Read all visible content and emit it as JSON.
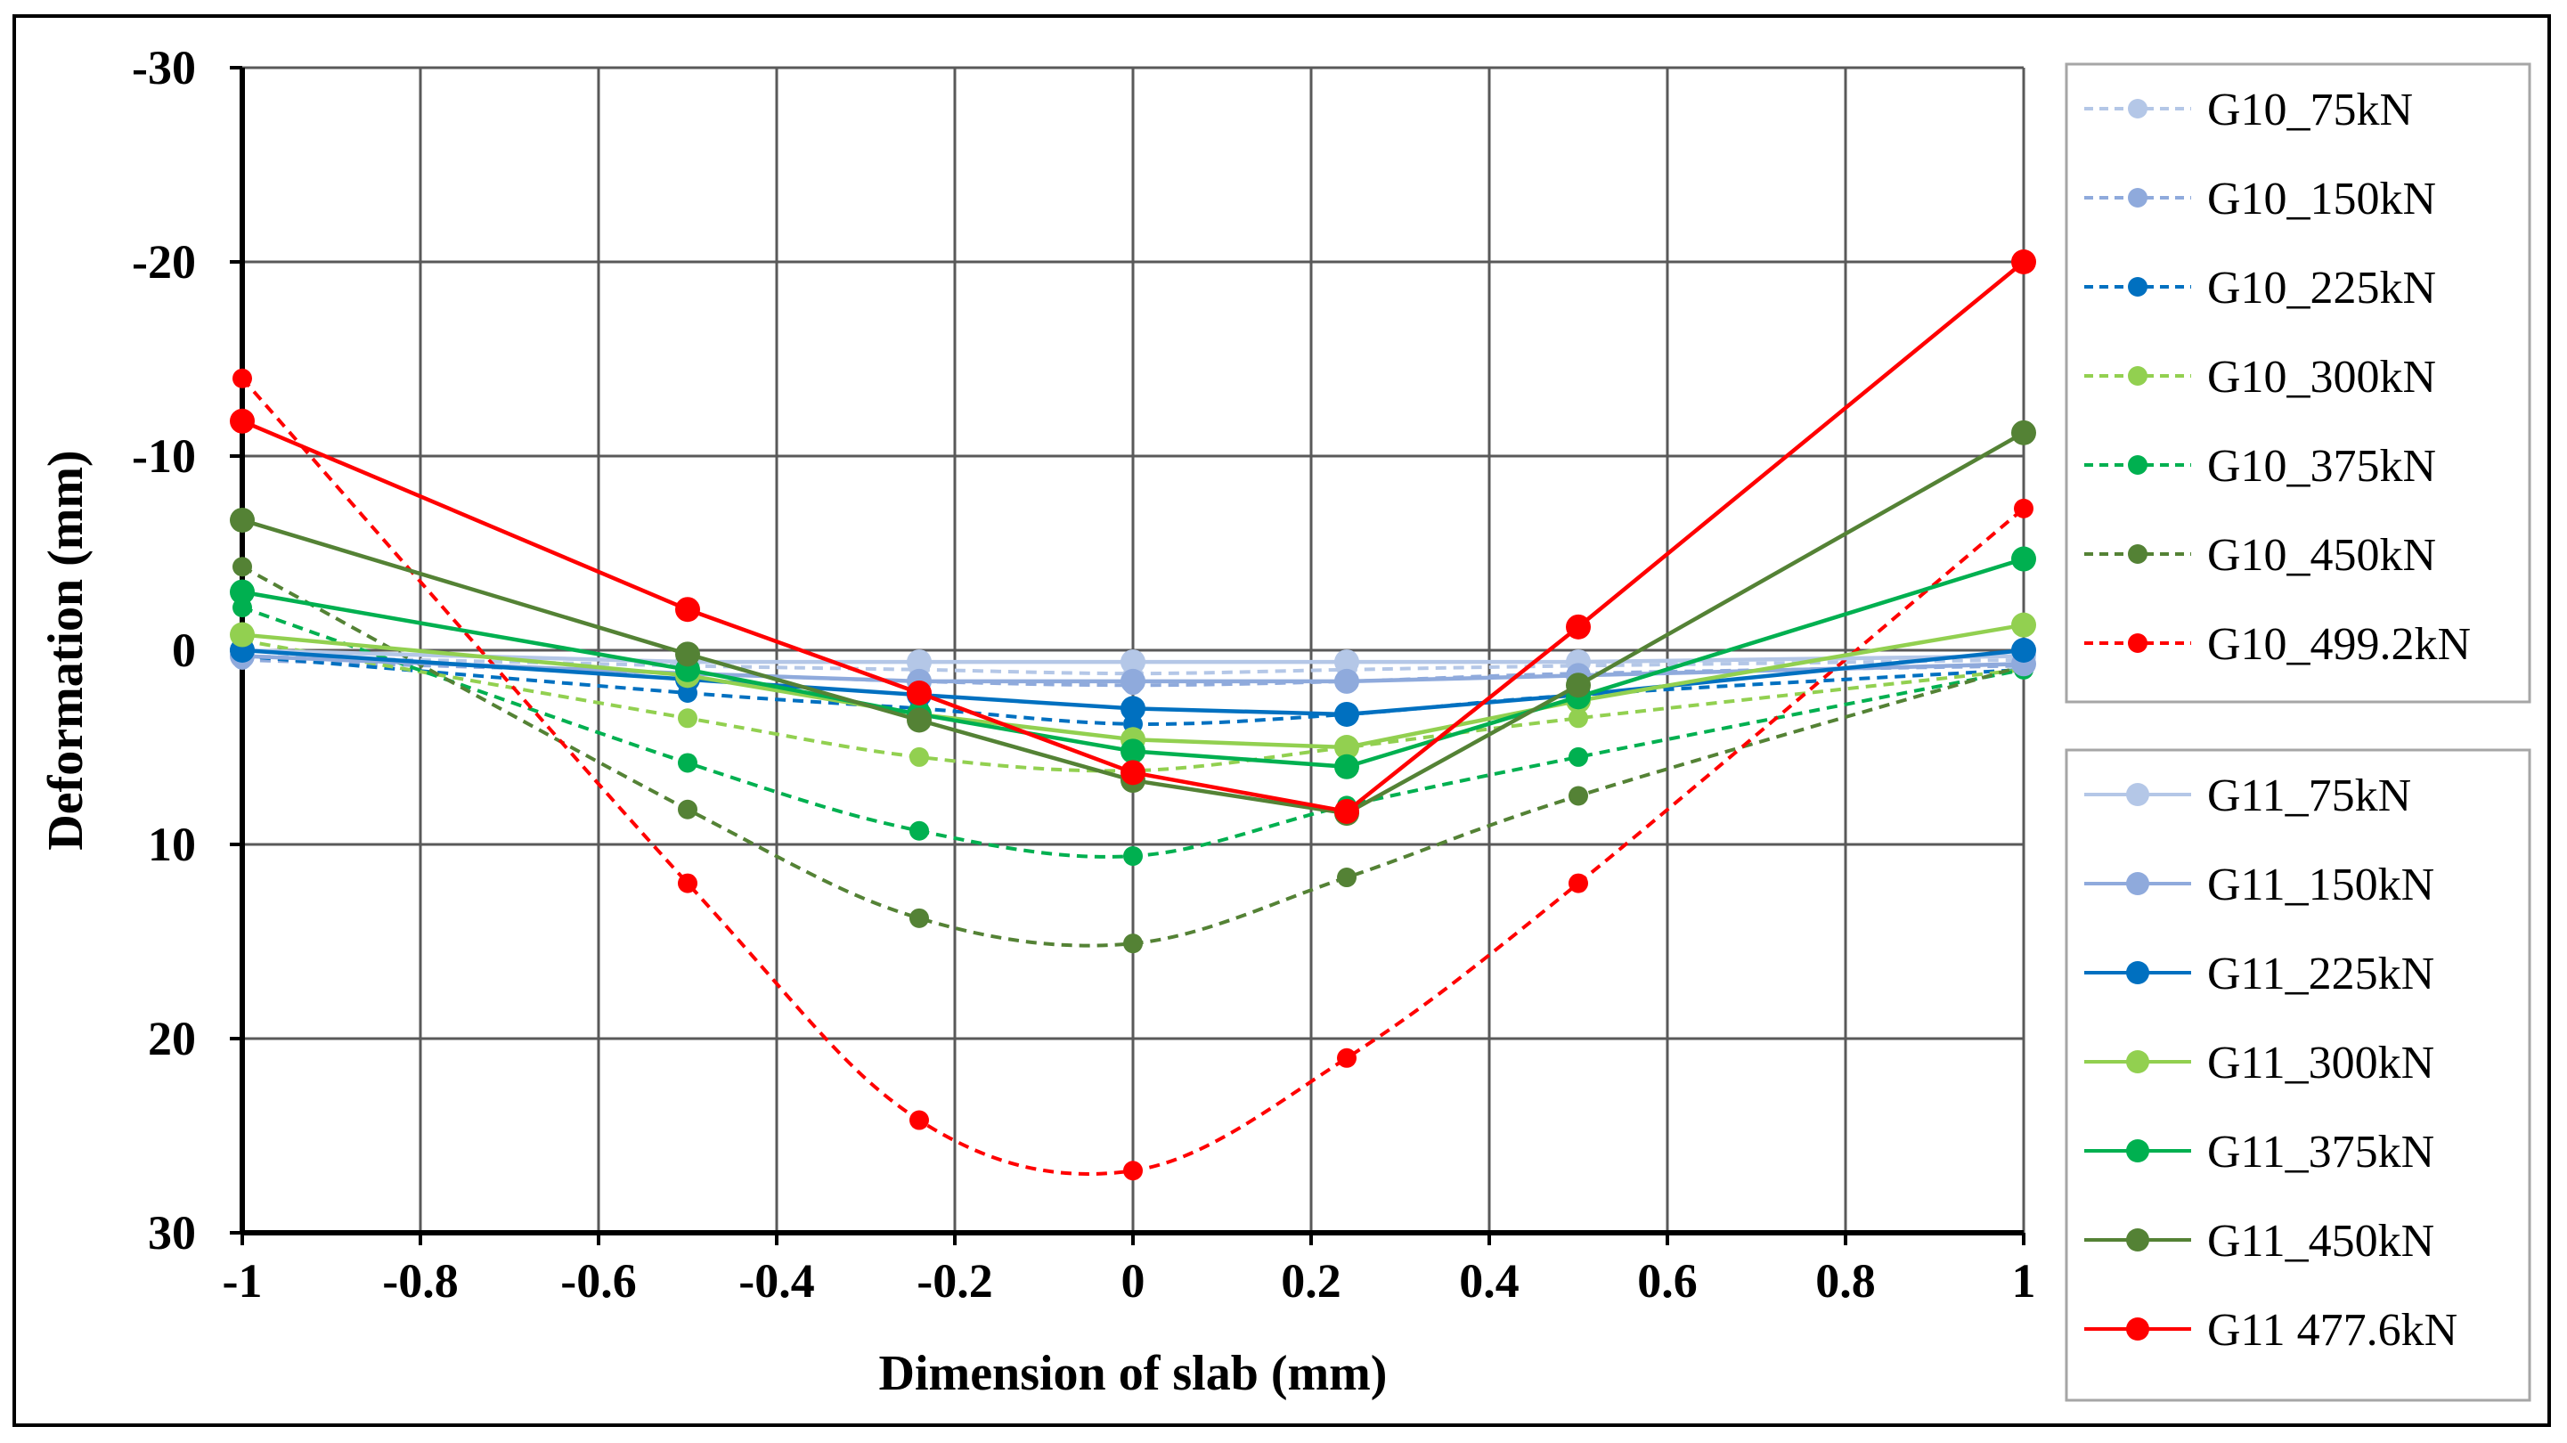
{
  "chart_data": {
    "type": "line",
    "title": "",
    "xlabel": "Dimension of slab (mm)",
    "ylabel": "Deformation (mm)",
    "xlim": [
      -1,
      1
    ],
    "ylim": [
      -30,
      30
    ],
    "y_inverted": true,
    "grid": true,
    "x_ticks": [
      -1,
      -0.8,
      -0.6,
      -0.4,
      -0.2,
      0,
      0.2,
      0.4,
      0.6,
      0.8,
      1
    ],
    "x_tick_labels": [
      "-1",
      "-0.8",
      "-0.6",
      "-0.4",
      "-0.2",
      "0",
      "0.2",
      "0.4",
      "0.6",
      "0.8",
      "1"
    ],
    "y_ticks": [
      -30,
      -20,
      -10,
      0,
      10,
      20,
      30
    ],
    "y_tick_labels": [
      "-30",
      "-20",
      "-10",
      "0",
      "10",
      "20",
      "30"
    ],
    "x": [
      -1,
      -0.5,
      -0.24,
      0,
      0.24,
      0.5,
      1
    ],
    "legend_groups": [
      {
        "position": "right-top",
        "series_names": [
          "G10_75kN",
          "G10_150kN",
          "G10_225kN",
          "G10_300kN",
          "G10_375kN",
          "G10_450kN",
          "G10_499.2kN"
        ]
      },
      {
        "position": "right-bottom",
        "series_names": [
          "G11_75kN",
          "G11_150kN",
          "G11_225kN",
          "G11_300kN",
          "G11_375kN",
          "G11_450kN",
          "G11  477.6kN"
        ]
      }
    ],
    "series": [
      {
        "name": "G10_75kN",
        "style": "dashed",
        "smooth": true,
        "marker": "small",
        "color": "#b4c7e7",
        "values": [
          0.3,
          0.8,
          1.0,
          1.2,
          1.0,
          0.8,
          0.5
        ]
      },
      {
        "name": "G10_150kN",
        "style": "dashed",
        "smooth": true,
        "marker": "small",
        "color": "#8faadc",
        "values": [
          0.5,
          1.2,
          1.6,
          1.8,
          1.6,
          1.2,
          0.8
        ]
      },
      {
        "name": "G10_225kN",
        "style": "dashed",
        "smooth": true,
        "marker": "small",
        "color": "#0070c0",
        "values": [
          0.3,
          2.2,
          3.0,
          3.8,
          3.3,
          2.3,
          1.0
        ]
      },
      {
        "name": "G10_300kN",
        "style": "dashed",
        "smooth": true,
        "marker": "small",
        "color": "#92d050",
        "values": [
          -0.5,
          3.5,
          5.5,
          6.2,
          5.0,
          3.5,
          1.0
        ]
      },
      {
        "name": "G10_375kN",
        "style": "dashed",
        "smooth": true,
        "marker": "small",
        "color": "#00b050",
        "values": [
          -2.2,
          5.8,
          9.3,
          10.6,
          8.0,
          5.5,
          1.0
        ]
      },
      {
        "name": "G10_450kN",
        "style": "dashed",
        "smooth": true,
        "marker": "small",
        "color": "#548235",
        "values": [
          -4.3,
          8.2,
          13.8,
          15.1,
          11.7,
          7.5,
          0.8
        ]
      },
      {
        "name": "G10_499.2kN",
        "style": "dashed",
        "smooth": true,
        "marker": "small",
        "color": "#ff0000",
        "values": [
          -14.0,
          12.0,
          24.2,
          26.8,
          21.0,
          12.0,
          -7.3
        ]
      },
      {
        "name": "G11_75kN",
        "style": "solid",
        "smooth": false,
        "marker": "large",
        "color": "#b4c7e7",
        "values": [
          0.0,
          0.6,
          0.6,
          0.6,
          0.6,
          0.6,
          0.3
        ]
      },
      {
        "name": "G11_150kN",
        "style": "solid",
        "smooth": false,
        "marker": "large",
        "color": "#8faadc",
        "values": [
          0.3,
          1.2,
          1.6,
          1.6,
          1.6,
          1.3,
          0.7
        ]
      },
      {
        "name": "G11_225kN",
        "style": "solid",
        "smooth": false,
        "marker": "large",
        "color": "#0070c0",
        "values": [
          0.0,
          1.5,
          2.3,
          3.0,
          3.3,
          2.3,
          0.0
        ]
      },
      {
        "name": "G11_300kN",
        "style": "solid",
        "smooth": false,
        "marker": "large",
        "color": "#92d050",
        "values": [
          -0.8,
          1.3,
          3.3,
          4.6,
          5.0,
          2.6,
          -1.3
        ]
      },
      {
        "name": "G11_375kN",
        "style": "solid",
        "smooth": false,
        "marker": "large",
        "color": "#00b050",
        "values": [
          -3.0,
          1.0,
          3.3,
          5.2,
          6.0,
          2.4,
          -4.7
        ]
      },
      {
        "name": "G11_450kN",
        "style": "solid",
        "smooth": false,
        "marker": "large",
        "color": "#548235",
        "values": [
          -6.7,
          0.2,
          3.6,
          6.7,
          8.4,
          1.8,
          -11.2
        ]
      },
      {
        "name": "G11  477.6kN",
        "style": "solid",
        "smooth": false,
        "marker": "large",
        "color": "#ff0000",
        "values": [
          -11.8,
          -2.1,
          2.2,
          6.3,
          8.3,
          -1.2,
          -20.0
        ]
      }
    ]
  }
}
